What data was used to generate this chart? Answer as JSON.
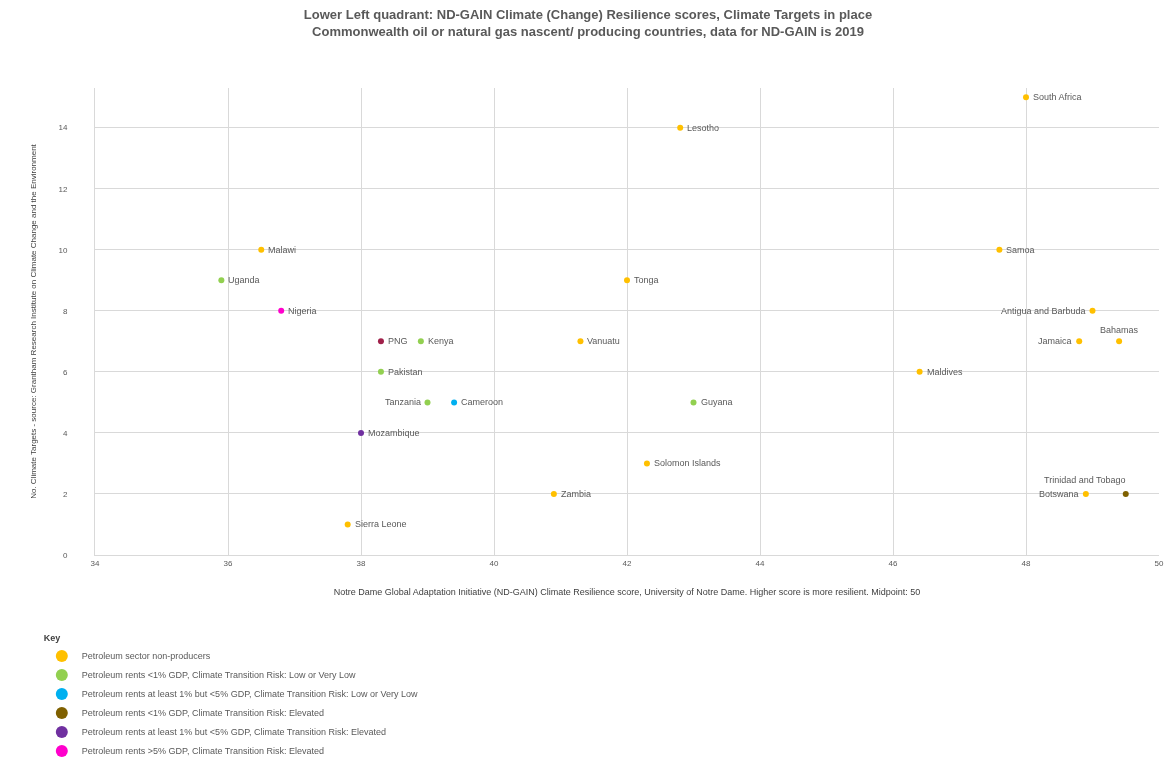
{
  "chart_data": {
    "type": "scatter",
    "title": "Lower Left quadrant: ND-GAIN Climate (Change) Resilience scores, Climate Targets in place\nCommonwealth oil or natural gas nascent/ producing countries, data for ND-GAIN is 2019",
    "xlabel": "Notre Dame Global Adaptation Initiative (ND-GAIN) Climate Resilience score, University of Notre Dame. Higher score is more resilient. Midpoint: 50",
    "ylabel": "No. Climate Targets - source: Grantham Research Institute on Climate Change and the Environment",
    "legend_title": "Key",
    "xlim": [
      34,
      50
    ],
    "xticks": [
      34,
      36,
      38,
      40,
      42,
      44,
      46,
      48,
      50
    ],
    "ylim": [
      0,
      15.3
    ],
    "yticks": [
      0,
      2,
      4,
      6,
      8,
      10,
      12,
      14
    ],
    "grid": true,
    "legend": "bottom left",
    "marker": "circle",
    "series": [
      {
        "name": "Petroleum sector non-producers",
        "color": "#ffc000",
        "x": [
          36.5,
          37.8,
          40.9,
          41.3,
          42.0,
          42.8,
          42.3,
          46.4,
          47.6,
          48.0,
          49.0,
          48.8,
          49.4,
          48.9
        ],
        "values": [
          10,
          1,
          2,
          7,
          9,
          14,
          3,
          6,
          10,
          15,
          8,
          7,
          7,
          2
        ]
      },
      {
        "name": "Petroleum rents <1% GDP, Climate Transition Risk: Low or Very Low",
        "color": "#92d050",
        "x": [
          35.9,
          38.9,
          38.3,
          39.0,
          43.0
        ],
        "values": [
          9,
          7,
          6,
          5,
          5
        ]
      },
      {
        "name": "Petroleum rents at least 1% but <5% GDP, Climate Transition Risk: Low or Very Low",
        "color": "#00b0f0",
        "x": [
          39.4
        ],
        "values": [
          5
        ]
      },
      {
        "name": "Petroleum rents <1% GDP, Climate Transition Risk: Elevated",
        "color": "#7f6000",
        "x": [
          49.5
        ],
        "values": [
          2
        ]
      },
      {
        "name": "Petroleum rents at least 1% but <5% GDP, Climate Transition Risk: Elevated",
        "color": "#7030a0",
        "x": [
          38.0
        ],
        "values": [
          4
        ]
      },
      {
        "name": "Petroleum rents >5% GDP, Climate Transition Risk: Elevated",
        "color": "#ff00ff",
        "colors": [
          "#ff00cc",
          "#a0204a"
        ],
        "x": [
          36.8,
          38.3
        ],
        "values": [
          8,
          7
        ]
      }
    ],
    "annotations": [
      {
        "text": "Malawi",
        "x": 36.5,
        "y": 10
      },
      {
        "text": "Sierra Leone",
        "x": 37.8,
        "y": 1
      },
      {
        "text": "Zambia",
        "x": 40.9,
        "y": 2
      },
      {
        "text": "Vanuatu",
        "x": 41.3,
        "y": 7
      },
      {
        "text": "Tonga",
        "x": 42.0,
        "y": 9
      },
      {
        "text": "Lesotho",
        "x": 42.8,
        "y": 14
      },
      {
        "text": "Solomon Islands",
        "x": 42.3,
        "y": 3
      },
      {
        "text": "Maldives",
        "x": 46.4,
        "y": 6
      },
      {
        "text": "Samoa",
        "x": 47.6,
        "y": 10
      },
      {
        "text": "South Africa",
        "x": 48.0,
        "y": 15
      },
      {
        "text": "Antigua and Barbuda",
        "x": 49.0,
        "y": 8
      },
      {
        "text": "Jamaica",
        "x": 48.8,
        "y": 7
      },
      {
        "text": "Bahamas",
        "x": 49.4,
        "y": 7
      },
      {
        "text": "Botswana",
        "x": 48.9,
        "y": 2
      },
      {
        "text": "Uganda",
        "x": 35.9,
        "y": 9
      },
      {
        "text": "Kenya",
        "x": 38.9,
        "y": 7
      },
      {
        "text": "Pakistan",
        "x": 38.3,
        "y": 6
      },
      {
        "text": "Tanzania",
        "x": 39.0,
        "y": 5
      },
      {
        "text": "Guyana",
        "x": 43.0,
        "y": 5
      },
      {
        "text": "Cameroon",
        "x": 39.4,
        "y": 5
      },
      {
        "text": "Trinidad and Tobago",
        "x": 49.5,
        "y": 2
      },
      {
        "text": "Mozambique",
        "x": 38.0,
        "y": 4
      },
      {
        "text": "Nigeria",
        "x": 36.8,
        "y": 8
      },
      {
        "text": "PNG",
        "x": 38.3,
        "y": 7
      }
    ]
  }
}
